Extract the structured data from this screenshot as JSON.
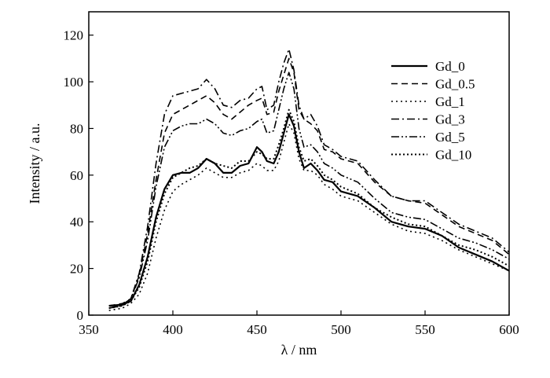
{
  "chart_data": {
    "type": "line",
    "title": "",
    "xlabel": "λ / nm",
    "ylabel": "Intensity / a.u.",
    "xlim": [
      350,
      600
    ],
    "ylim": [
      0,
      130
    ],
    "xticks": [
      350,
      400,
      450,
      500,
      550,
      600
    ],
    "yticks": [
      0,
      20,
      40,
      60,
      80,
      100,
      120
    ],
    "grid": false,
    "legend_position": "top-right",
    "x": [
      362,
      370,
      375,
      380,
      385,
      390,
      395,
      400,
      405,
      410,
      415,
      420,
      425,
      430,
      435,
      440,
      445,
      450,
      453,
      456,
      460,
      463,
      466,
      469,
      472,
      475,
      478,
      482,
      486,
      490,
      495,
      500,
      510,
      520,
      530,
      540,
      550,
      560,
      570,
      580,
      590,
      600
    ],
    "series": [
      {
        "name": "Gd_0",
        "dash": "",
        "width": 2.2,
        "values": [
          4,
          4.5,
          6,
          13,
          25,
          42,
          54,
          60,
          61,
          61,
          63,
          67,
          65,
          61,
          61,
          64,
          65,
          72,
          70,
          66,
          65,
          70,
          78,
          86,
          81,
          70,
          63,
          65,
          62,
          58,
          57,
          53,
          51,
          46,
          40,
          38,
          37,
          34,
          29,
          26,
          23,
          19
        ]
      },
      {
        "name": "Gd_0.5",
        "dash": "8,5",
        "width": 1.6,
        "values": [
          4,
          5,
          7,
          17,
          35,
          58,
          78,
          86,
          88,
          90,
          92,
          94,
          91,
          86,
          84,
          87,
          90,
          92,
          93,
          86,
          87,
          96,
          103,
          110,
          104,
          88,
          84,
          82,
          79,
          71,
          70,
          67,
          65,
          57,
          51,
          49,
          48,
          43,
          38,
          35,
          32,
          26
        ]
      },
      {
        "name": "Gd_1",
        "dash": "2,4",
        "width": 1.6,
        "values": [
          2,
          3,
          5,
          9,
          18,
          33,
          45,
          53,
          56,
          58,
          60,
          63,
          61,
          59,
          59,
          61,
          62,
          65,
          64,
          62,
          62,
          66,
          74,
          82,
          78,
          67,
          62,
          62,
          60,
          56,
          54,
          51,
          49,
          44,
          39,
          36,
          35,
          32,
          28,
          25,
          22,
          19
        ]
      },
      {
        "name": "Gd_3",
        "dash": "10,4,2,4",
        "width": 1.6,
        "values": [
          3,
          4.5,
          7,
          18,
          38,
          65,
          86,
          94,
          95,
          96,
          97,
          101,
          97,
          90,
          89,
          92,
          93,
          97,
          98,
          88,
          90,
          100,
          108,
          114,
          105,
          90,
          84,
          86,
          81,
          73,
          71,
          68,
          66,
          58,
          51,
          49,
          49,
          44,
          39,
          36,
          33,
          27
        ]
      },
      {
        "name": "Gd_5",
        "dash": "10,3,2,3,2,3",
        "width": 1.6,
        "values": [
          3,
          4,
          7,
          16,
          32,
          55,
          72,
          79,
          81,
          82,
          82,
          84,
          82,
          78,
          77,
          79,
          80,
          83,
          84,
          78,
          79,
          88,
          97,
          104,
          97,
          80,
          72,
          73,
          70,
          65,
          63,
          60,
          57,
          50,
          44,
          42,
          41,
          37,
          33,
          31,
          28,
          24
        ]
      },
      {
        "name": "Gd_10",
        "dash": "2,3",
        "width": 2.0,
        "values": [
          3,
          4,
          6,
          12,
          23,
          40,
          52,
          59,
          61,
          63,
          64,
          67,
          65,
          64,
          63,
          66,
          66,
          70,
          69,
          67,
          67,
          73,
          80,
          88,
          83,
          72,
          66,
          67,
          64,
          60,
          58,
          55,
          52,
          46,
          42,
          39,
          38,
          34,
          30,
          28,
          25,
          21
        ]
      }
    ]
  }
}
